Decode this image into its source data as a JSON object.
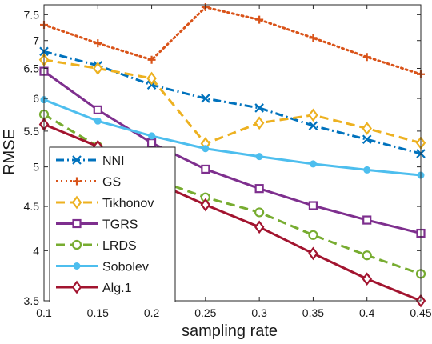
{
  "chart_data": {
    "type": "line",
    "xlabel": "sampling rate",
    "ylabel": "RMSE",
    "x": [
      0.1,
      0.15,
      0.2,
      0.25,
      0.3,
      0.35,
      0.4,
      0.45
    ],
    "x_tick_labels": [
      "0.1",
      "0.15",
      "0.2",
      "0.25",
      "0.3",
      "0.35",
      "0.4",
      "0.45"
    ],
    "xlim": [
      0.1,
      0.45
    ],
    "ylim": [
      3.5,
      7.7
    ],
    "y_scale": "log",
    "y_ticks": [
      3.5,
      4,
      4.5,
      5,
      5.5,
      6,
      6.5,
      7,
      7.5
    ],
    "y_tick_labels": [
      "3.5",
      "4",
      "4.5",
      "5",
      "5.5",
      "6",
      "6.5",
      "7",
      "7.5"
    ],
    "grid": false,
    "legend_position": "bottom-left",
    "series": [
      {
        "name": "NNI",
        "values": [
          6.8,
          6.55,
          6.22,
          6.0,
          5.85,
          5.58,
          5.38,
          5.18
        ],
        "color": "#0072BD",
        "dash": "dashdot",
        "marker": "x"
      },
      {
        "name": "GS",
        "values": [
          7.3,
          6.95,
          6.65,
          7.65,
          7.4,
          7.05,
          6.7,
          6.4
        ],
        "color": "#D95319",
        "dash": "dotted",
        "marker": "plus"
      },
      {
        "name": "Tikhonov",
        "values": [
          6.65,
          6.5,
          6.33,
          5.32,
          5.62,
          5.74,
          5.54,
          5.33
        ],
        "color": "#EDB120",
        "dash": "dashed",
        "marker": "diamond"
      },
      {
        "name": "TGRS",
        "values": [
          6.45,
          5.82,
          5.33,
          4.97,
          4.72,
          4.51,
          4.34,
          4.19
        ],
        "color": "#7E2F8E",
        "dash": "solid",
        "marker": "square"
      },
      {
        "name": "LRDS",
        "values": [
          5.75,
          5.28,
          4.85,
          4.61,
          4.43,
          4.17,
          3.95,
          3.76
        ],
        "color": "#77AC30",
        "dash": "dashed",
        "marker": "circle"
      },
      {
        "name": "Sobolev",
        "values": [
          5.98,
          5.65,
          5.43,
          5.25,
          5.14,
          5.04,
          4.96,
          4.89
        ],
        "color": "#4DBEEE",
        "dash": "solid",
        "marker": "dot"
      },
      {
        "name": "Alg.1",
        "values": [
          5.6,
          5.28,
          4.82,
          4.52,
          4.26,
          3.97,
          3.71,
          3.5
        ],
        "color": "#A2142F",
        "dash": "solid",
        "marker": "diamond"
      }
    ]
  }
}
